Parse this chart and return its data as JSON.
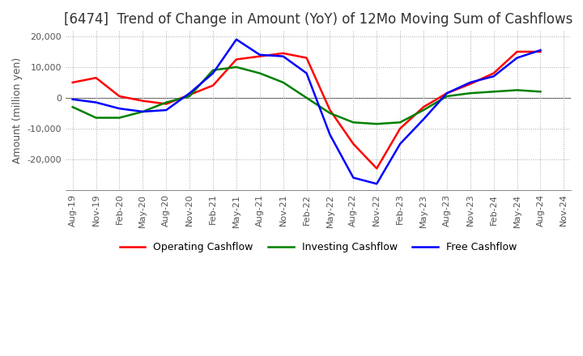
{
  "title": "[6474]  Trend of Change in Amount (YoY) of 12Mo Moving Sum of Cashflows",
  "ylabel": "Amount (million yen)",
  "ylim": [
    -30000,
    22000
  ],
  "yticks": [
    -20000,
    -10000,
    0,
    10000,
    20000
  ],
  "dates": [
    "Aug-19",
    "Nov-19",
    "Feb-20",
    "May-20",
    "Aug-20",
    "Nov-20",
    "Feb-21",
    "May-21",
    "Aug-21",
    "Nov-21",
    "Feb-22",
    "May-22",
    "Aug-22",
    "Nov-22",
    "Feb-23",
    "May-23",
    "Aug-23",
    "Nov-23",
    "Feb-24",
    "May-24",
    "Aug-24",
    "Nov-24"
  ],
  "operating": [
    5000,
    6500,
    500,
    -1000,
    -2000,
    1000,
    4000,
    12500,
    13500,
    14500,
    13000,
    -4000,
    -15000,
    -23000,
    -10000,
    -3000,
    1500,
    4500,
    8000,
    15000,
    15000,
    null
  ],
  "investing": [
    -3000,
    -6500,
    -6500,
    -4500,
    -1500,
    500,
    9000,
    10000,
    8000,
    5000,
    0,
    -5000,
    -8000,
    -8500,
    -8000,
    -4000,
    500,
    1500,
    2000,
    2500,
    2000,
    null
  ],
  "free": [
    -500,
    -1500,
    -3500,
    -4500,
    -4000,
    1500,
    8000,
    19000,
    14000,
    13500,
    8000,
    -12000,
    -26000,
    -28000,
    -15000,
    -7000,
    1500,
    5000,
    7000,
    13000,
    15500,
    null
  ],
  "op_color": "#ff0000",
  "inv_color": "#008000",
  "free_color": "#0000ff",
  "bg_color": "#ffffff",
  "grid_color": "#aaaaaa",
  "title_fontsize": 12,
  "title_color": "#333333",
  "label_fontsize": 9,
  "tick_fontsize": 8,
  "legend_fontsize": 9
}
